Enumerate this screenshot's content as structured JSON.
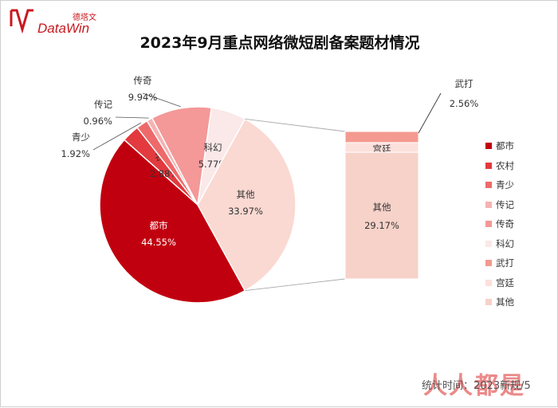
{
  "brand": {
    "name": "DataWin",
    "cn_name": "德塔文"
  },
  "chart_data": {
    "type": "pie",
    "title": "2023年9月重点网络微短剧备案题材情况",
    "main_slices": [
      {
        "name": "都市",
        "value": 44.55,
        "label": "44.55%",
        "color": "#c1000f"
      },
      {
        "name": "农村",
        "value": 2.88,
        "label": "2.88%",
        "color": "#e23a3e"
      },
      {
        "name": "青少",
        "value": 1.92,
        "label": "1.92%",
        "color": "#ee6a6a"
      },
      {
        "name": "传记",
        "value": 0.96,
        "label": "0.96%",
        "color": "#f6b2b2"
      },
      {
        "name": "传奇",
        "value": 9.94,
        "label": "9.94%",
        "color": "#f49898"
      },
      {
        "name": "科幻",
        "value": 5.77,
        "label": "5.77%",
        "color": "#fbe8e8"
      },
      {
        "name": "其他",
        "value": 33.97,
        "label": "33.97%",
        "color": "#fad9d2"
      }
    ],
    "breakdown_of": "其他",
    "breakdown": [
      {
        "name": "武打",
        "value": 2.56,
        "label": "2.56%",
        "color": "#f49a90"
      },
      {
        "name": "宫廷",
        "value": 2.24,
        "label": "2.24%",
        "color": "#fce0dc"
      },
      {
        "name": "其他",
        "value": 29.17,
        "label": "29.17%",
        "color": "#f6d2c9"
      }
    ],
    "legend": {
      "placement": "right",
      "entries": [
        {
          "name": "都市",
          "color": "#c1000f"
        },
        {
          "name": "农村",
          "color": "#e23a3e"
        },
        {
          "name": "青少",
          "color": "#ee6a6a"
        },
        {
          "name": "传记",
          "color": "#f6b2b2"
        },
        {
          "name": "传奇",
          "color": "#f49898"
        },
        {
          "name": "科幻",
          "color": "#fbe8e8"
        },
        {
          "name": "武打",
          "color": "#f49a90"
        },
        {
          "name": "宫廷",
          "color": "#fce0dc"
        },
        {
          "name": "其他",
          "color": "#f6d2c9"
        }
      ]
    }
  },
  "footer": {
    "text": "统计时间：2023新规/5"
  },
  "watermark": {
    "text": "人人都是"
  }
}
